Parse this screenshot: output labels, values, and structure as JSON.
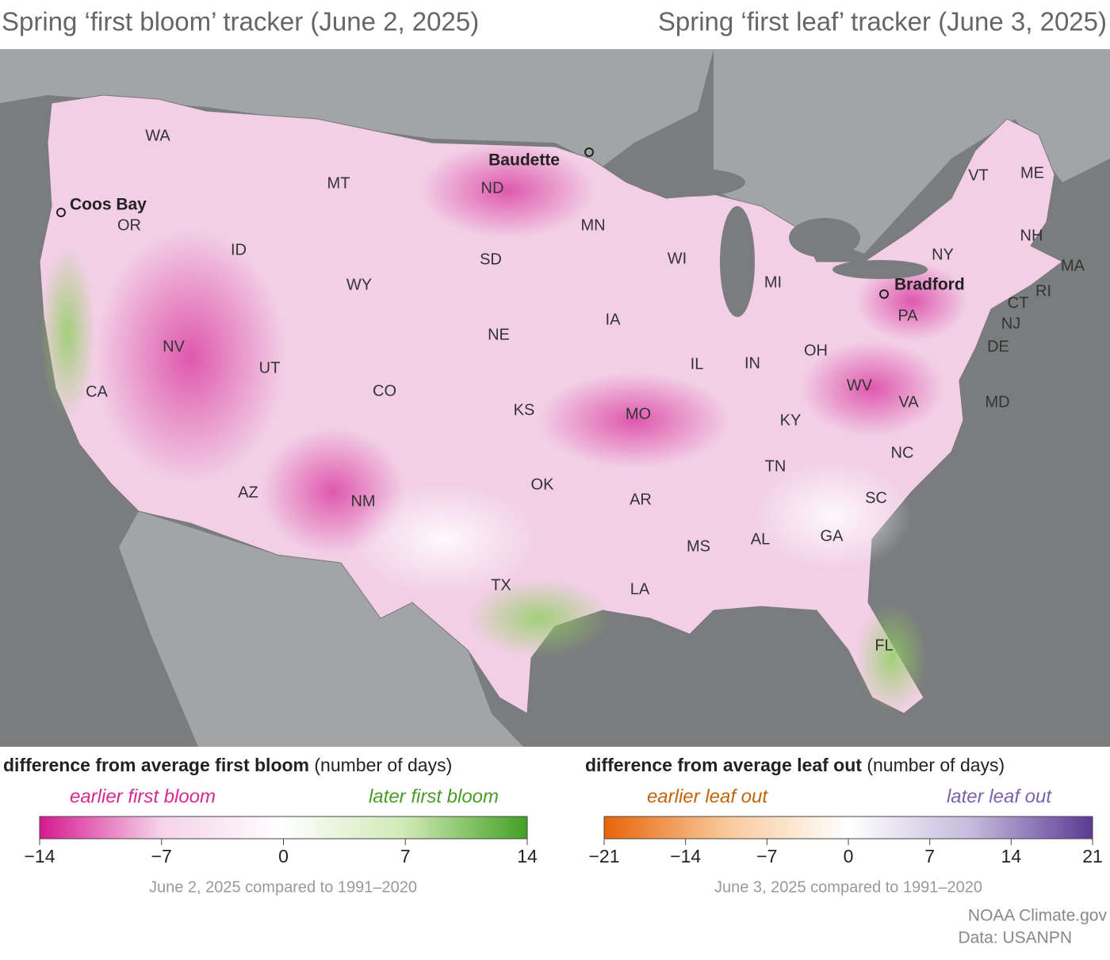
{
  "titles": {
    "left": "Spring ‘first bloom’ tracker (June 2, 2025)",
    "right": "Spring ‘first leaf’ tracker (June 3, 2025)"
  },
  "map": {
    "states": [
      "WA",
      "OR",
      "CA",
      "NV",
      "ID",
      "MT",
      "WY",
      "UT",
      "AZ",
      "CO",
      "NM",
      "ND",
      "SD",
      "NE",
      "KS",
      "OK",
      "TX",
      "MN",
      "IA",
      "MO",
      "AR",
      "LA",
      "WI",
      "IL",
      "MS",
      "MI",
      "IN",
      "OH",
      "KY",
      "TN",
      "AL",
      "GA",
      "FL",
      "SC",
      "NC",
      "VA",
      "WV",
      "PA",
      "NY",
      "VT",
      "NH",
      "ME",
      "MA",
      "RI",
      "CT",
      "NJ",
      "DE",
      "MD"
    ],
    "cities": [
      "Coos Bay",
      "Baudette",
      "Bradford"
    ]
  },
  "legends": [
    {
      "title_bold": "difference from average first bloom",
      "title_unit": "(number of days)",
      "low_label": "earlier first bloom",
      "high_label": "later first bloom",
      "low_color": "#d6298f",
      "high_color": "#4a9a26",
      "colors": [
        "#d6198f",
        "#f6d3ea",
        "#ffffff",
        "#cfe9b4",
        "#43a023"
      ],
      "range": [
        -14,
        14
      ],
      "ticks": [
        {
          "value": -14,
          "label": "−14"
        },
        {
          "value": -7,
          "label": "−7"
        },
        0,
        7,
        14
      ],
      "note": "June 2, 2025 compared to 1991–2020"
    },
    {
      "title_bold": "difference from average leaf out",
      "title_unit": "(number of days)",
      "low_label": "earlier leaf out",
      "high_label": "later leaf out",
      "low_color": "#c0650a",
      "high_color": "#7a63a8",
      "colors": [
        "#e8650a",
        "#f8c99a",
        "#ffffff",
        "#c6bbdd",
        "#5b3a93"
      ],
      "range": [
        -21,
        21
      ],
      "ticks": [
        {
          "value": -21,
          "label": "−21"
        },
        {
          "value": -14,
          "label": "−14"
        },
        {
          "value": -7,
          "label": "−7"
        },
        0,
        7,
        14,
        21
      ],
      "note": "June 3, 2025 compared to 1991–2020"
    }
  ],
  "credits": [
    "NOAA Climate.gov",
    "Data: USANPN"
  ]
}
